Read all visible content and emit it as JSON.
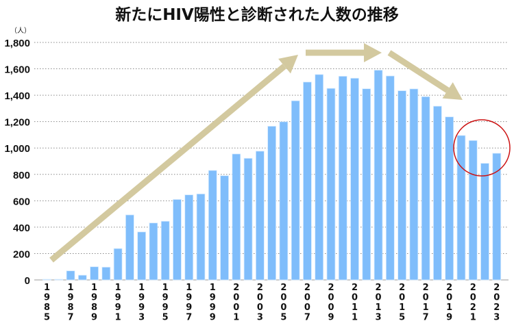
{
  "chart_data": {
    "type": "bar",
    "title": "新たにHIV陽性と診断された人数の推移",
    "ylabel": "（人）",
    "xlabel": "",
    "ylim": [
      0,
      1800
    ],
    "yticks": [
      "0",
      "200",
      "400",
      "600",
      "800",
      "1,000",
      "1,200",
      "1,400",
      "1,600",
      "1,800"
    ],
    "ytick_values": [
      0,
      200,
      400,
      600,
      800,
      1000,
      1200,
      1400,
      1600,
      1800
    ],
    "grid": true,
    "categories": [
      "1985",
      "1986",
      "1987",
      "1988",
      "1989",
      "1990",
      "1991",
      "1992",
      "1993",
      "1994",
      "1995",
      "1996",
      "1997",
      "1998",
      "1999",
      "2000",
      "2001",
      "2002",
      "2003",
      "2004",
      "2005",
      "2006",
      "2007",
      "2008",
      "2009",
      "2010",
      "2011",
      "2012",
      "2013",
      "2014",
      "2015",
      "2016",
      "2017",
      "2018",
      "2019",
      "2020",
      "2021",
      "2022",
      "2023"
    ],
    "xtick_labels": [
      "1985",
      "1987",
      "1989",
      "1991",
      "1993",
      "1995",
      "1997",
      "1999",
      "2001",
      "2003",
      "2005",
      "2007",
      "2009",
      "2011",
      "2013",
      "2015",
      "2017",
      "2019",
      "2021",
      "2023"
    ],
    "values": [
      5,
      5,
      69,
      36,
      100,
      97,
      238,
      493,
      364,
      432,
      445,
      610,
      645,
      652,
      830,
      790,
      955,
      922,
      976,
      1165,
      1199,
      1358,
      1500,
      1557,
      1452,
      1544,
      1529,
      1449,
      1590,
      1546,
      1434,
      1448,
      1389,
      1317,
      1236,
      1095,
      1057,
      884,
      960
    ],
    "bar_color": "#7fbdfb",
    "annotations": {
      "arrow_color": "#d3c99f",
      "trend_arrows": [
        "rise 1985-2007",
        "plateau 2008-2013",
        "decline 2014-2020"
      ],
      "highlight_circle": {
        "color": "#cc1111",
        "years": [
          "2020",
          "2023"
        ]
      }
    }
  }
}
